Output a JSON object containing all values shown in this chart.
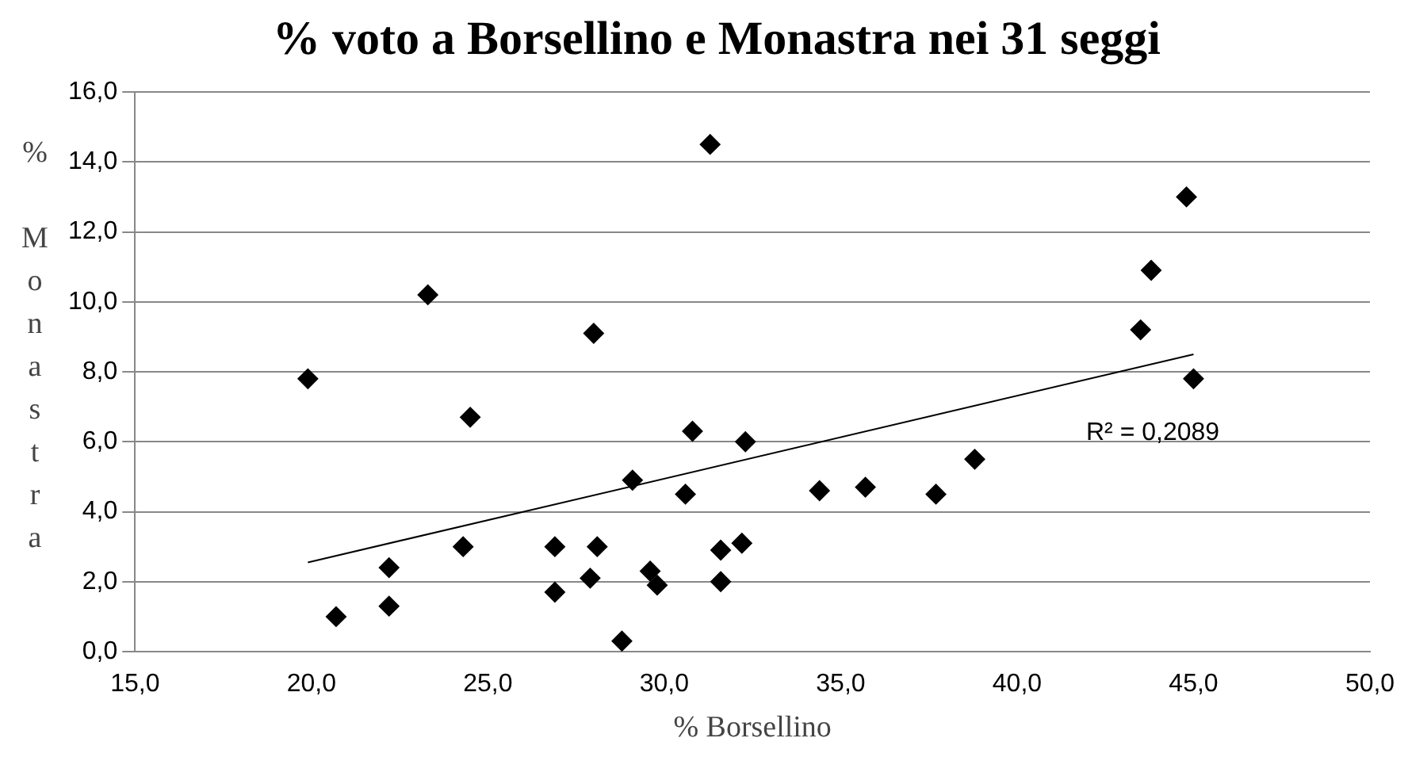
{
  "chart_data": {
    "type": "scatter",
    "title": "% voto a Borsellino e Monastra nei 31 seggi",
    "xlabel": "% Borsellino",
    "ylabel": "% Monastra",
    "xlim": [
      15,
      50
    ],
    "xticks": [
      {
        "value": 15,
        "label": "15,0"
      },
      {
        "value": 20,
        "label": "20,0"
      },
      {
        "value": 25,
        "label": "25,0"
      },
      {
        "value": 30,
        "label": "30,0"
      },
      {
        "value": 35,
        "label": "35,0"
      },
      {
        "value": 40,
        "label": "40,0"
      },
      {
        "value": 45,
        "label": "45,0"
      },
      {
        "value": 50,
        "label": "50,0"
      }
    ],
    "ylim": [
      0,
      16
    ],
    "yticks": [
      {
        "value": 0,
        "label": "0,0"
      },
      {
        "value": 2,
        "label": "2,0"
      },
      {
        "value": 4,
        "label": "4,0"
      },
      {
        "value": 6,
        "label": "6,0"
      },
      {
        "value": 8,
        "label": "8,0"
      },
      {
        "value": 10,
        "label": "10,0"
      },
      {
        "value": 12,
        "label": "12,0"
      },
      {
        "value": 14,
        "label": "14,0"
      },
      {
        "value": 16,
        "label": "16,0"
      }
    ],
    "grid": "y",
    "marker": "diamond",
    "series": [
      {
        "color": "#000000",
        "x": [
          19.9,
          20.7,
          22.2,
          22.2,
          23.3,
          24.3,
          24.5,
          26.9,
          26.9,
          28.0,
          27.9,
          28.1,
          28.8,
          29.1,
          29.6,
          29.8,
          30.6,
          30.8,
          31.3,
          31.6,
          31.6,
          32.2,
          32.3,
          34.4,
          35.7,
          37.7,
          38.8,
          43.5,
          43.8,
          44.8,
          45.0
        ],
        "values": [
          7.8,
          1.0,
          2.4,
          1.3,
          10.2,
          3.0,
          6.7,
          3.0,
          1.7,
          9.1,
          2.1,
          3.0,
          0.3,
          4.9,
          2.3,
          1.9,
          4.5,
          6.3,
          14.5,
          2.9,
          2.0,
          3.1,
          6.0,
          4.6,
          4.7,
          4.5,
          5.5,
          9.2,
          10.9,
          13.0,
          7.8
        ]
      },
      {
        "type": "line",
        "color": "#000000",
        "marker": "none",
        "line_style": "solid",
        "x": [
          19.9,
          45.0
        ],
        "values": [
          2.55,
          8.5
        ]
      }
    ],
    "annotations": [
      "R² = 0,2089"
    ]
  }
}
